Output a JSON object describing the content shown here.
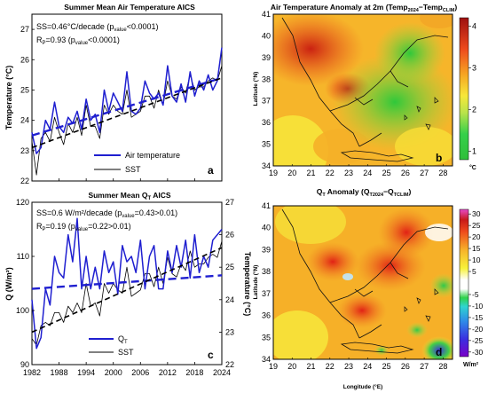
{
  "chart_data": [
    {
      "id": "a",
      "type": "line",
      "title": "Summer Mean Air Temperature AICS",
      "ylabel": "Temperature (°C)",
      "xlabel": "",
      "ylim": [
        22,
        27.5
      ],
      "xlim": [
        1982,
        2024
      ],
      "yticks": [
        22,
        23,
        24,
        25,
        26,
        27
      ],
      "annotation_line1": "SS=0.46°C/decade (p",
      "annotation_line1_sub": "value",
      "annotation_line1_end": "<0.0001)",
      "annotation_line2": "R",
      "annotation_line2_sub": "P",
      "annotation_line2_mid": "=0.93 (p",
      "annotation_line2_sub2": "value",
      "annotation_line2_end": "<0.0001)",
      "panel_label": "a",
      "x": [
        1982,
        1983,
        1984,
        1985,
        1986,
        1987,
        1988,
        1989,
        1990,
        1991,
        1992,
        1993,
        1994,
        1995,
        1996,
        1997,
        1998,
        1999,
        2000,
        2001,
        2002,
        2003,
        2004,
        2005,
        2006,
        2007,
        2008,
        2009,
        2010,
        2011,
        2012,
        2013,
        2014,
        2015,
        2016,
        2017,
        2018,
        2019,
        2020,
        2021,
        2022,
        2023,
        2024
      ],
      "series": [
        {
          "name": "Air temperature",
          "color": "#1f1fd0",
          "width": 1.5,
          "values": [
            23.6,
            22.9,
            23.1,
            24.0,
            23.7,
            24.6,
            23.8,
            23.6,
            24.1,
            23.9,
            24.3,
            23.7,
            24.7,
            24.0,
            24.2,
            23.6,
            25.0,
            24.3,
            24.9,
            24.6,
            24.3,
            25.6,
            24.3,
            24.2,
            24.4,
            25.3,
            24.9,
            24.7,
            24.9,
            24.5,
            25.8,
            24.8,
            24.6,
            25.2,
            24.6,
            25.6,
            24.8,
            25.3,
            25.0,
            25.5,
            25.0,
            25.3,
            26.4
          ]
        },
        {
          "name": "SST",
          "color": "#000000",
          "width": 0.8,
          "values": [
            23.3,
            22.2,
            23.4,
            23.6,
            23.3,
            24.1,
            23.6,
            23.2,
            23.9,
            23.6,
            24.1,
            23.5,
            24.5,
            23.8,
            23.8,
            23.4,
            24.5,
            24.2,
            24.5,
            24.3,
            24.2,
            25.0,
            24.1,
            24.2,
            24.3,
            24.8,
            24.8,
            24.4,
            25.0,
            24.5,
            25.3,
            24.8,
            24.7,
            25.1,
            24.9,
            25.5,
            25.0,
            25.1,
            25.1,
            25.3,
            25.4,
            25.3,
            25.8
          ]
        }
      ],
      "trends": [
        {
          "color": "#1f1fd0",
          "y0": 23.5,
          "y1": 25.4
        },
        {
          "color": "#000000",
          "y0": 23.1,
          "y1": 25.4
        }
      ]
    },
    {
      "id": "b",
      "type": "heatmap",
      "title": "Air Temperature Anomaly at 2m (Temp",
      "title_sub1": "2024",
      "title_mid": "−Temp",
      "title_sub2": "CLIM",
      "title_end": ")",
      "ylabel": "Latitude (°N)",
      "xlim": [
        19,
        28.5
      ],
      "ylim": [
        34,
        41
      ],
      "yticks": [
        34,
        35,
        36,
        37,
        38,
        39,
        40,
        41
      ],
      "colorbar_ticks": [
        1,
        2,
        3,
        4
      ],
      "colorbar_unit": "°C",
      "panel_label": "b"
    },
    {
      "id": "c",
      "type": "line",
      "title": "Summer Mean Q",
      "title_sub": "T",
      "title_end": " AICS",
      "ylabel": "Q (W/m²)",
      "ylabel_right": "Temperature (°C)",
      "xlabel": "",
      "ylim": [
        90,
        120
      ],
      "ylim_right": [
        22,
        27
      ],
      "xlim": [
        1982,
        2024
      ],
      "yticks": [
        90,
        100,
        110,
        120
      ],
      "yticks_right": [
        22,
        23,
        24,
        25,
        26,
        27
      ],
      "xticks": [
        1982,
        1988,
        1994,
        2000,
        2006,
        2012,
        2018,
        2024
      ],
      "annotation_line1": "SS=0.6 W/m²/decade (p",
      "annotation_line1_sub": "value",
      "annotation_line1_end": "=0.43>0.01)",
      "annotation_line2": "R",
      "annotation_line2_sub": "P",
      "annotation_line2_mid": "=0.19 (p",
      "annotation_line2_sub2": "value",
      "annotation_line2_end": "=0.22>0.01)",
      "panel_label": "c",
      "x": [
        1982,
        1983,
        1984,
        1985,
        1986,
        1987,
        1988,
        1989,
        1990,
        1991,
        1992,
        1993,
        1994,
        1995,
        1996,
        1997,
        1998,
        1999,
        2000,
        2001,
        2002,
        2003,
        2004,
        2005,
        2006,
        2007,
        2008,
        2009,
        2010,
        2011,
        2012,
        2013,
        2014,
        2015,
        2016,
        2017,
        2018,
        2019,
        2020,
        2021,
        2022,
        2023,
        2024
      ],
      "series": [
        {
          "name": "Q",
          "name_sub": "T",
          "color": "#1f1fd0",
          "width": 1.5,
          "axis": "left",
          "values": [
            102,
            93,
            95,
            104,
            101,
            110,
            107,
            106,
            114,
            109,
            117,
            104,
            110,
            104,
            108,
            104,
            111,
            107,
            109,
            103,
            112,
            109,
            110,
            107,
            113,
            104,
            110,
            112,
            104,
            104,
            111,
            107,
            112,
            108,
            113,
            106,
            114,
            107,
            110,
            108,
            113,
            114,
            115
          ]
        },
        {
          "name": "SST",
          "color": "#000000",
          "width": 0.8,
          "axis": "right",
          "values": [
            22.8,
            22.6,
            23.2,
            23.3,
            23.2,
            23.6,
            23.6,
            23.3,
            23.8,
            23.6,
            23.9,
            23.6,
            24.5,
            23.8,
            23.9,
            23.5,
            24.5,
            24.2,
            24.5,
            24.3,
            24.2,
            25.0,
            24.1,
            24.2,
            24.3,
            24.8,
            24.8,
            24.4,
            25.0,
            24.5,
            25.3,
            24.8,
            24.7,
            25.1,
            24.9,
            25.5,
            25.0,
            25.1,
            25.1,
            25.3,
            25.4,
            25.3,
            25.8
          ]
        }
      ],
      "trends": [
        {
          "color": "#1f1fd0",
          "y0": 104,
          "y1": 106.5,
          "axis": "left"
        },
        {
          "color": "#000000",
          "y0": 23.0,
          "y1": 25.6,
          "axis": "right"
        }
      ]
    },
    {
      "id": "d",
      "type": "heatmap",
      "title": "Q",
      "title_sub0": "T",
      "title_mid0": " Anomaly (Q",
      "title_sub1": "T2024",
      "title_mid": "−Q",
      "title_sub2": "TCLIM",
      "title_end": ")",
      "ylabel": "Latitude (°N)",
      "xlabel": "Longitude (°E)",
      "xlim": [
        19,
        28.5
      ],
      "ylim": [
        34,
        41
      ],
      "xticks": [
        19,
        20,
        21,
        22,
        23,
        24,
        25,
        26,
        27,
        28
      ],
      "yticks": [
        34,
        35,
        36,
        37,
        38,
        39,
        40,
        41
      ],
      "colorbar_ticks": [
        30,
        25,
        20,
        15,
        10,
        5,
        -5,
        -10,
        -15,
        -20,
        -25,
        -30
      ],
      "colorbar_unit": "W/m²",
      "panel_label": "d"
    }
  ]
}
